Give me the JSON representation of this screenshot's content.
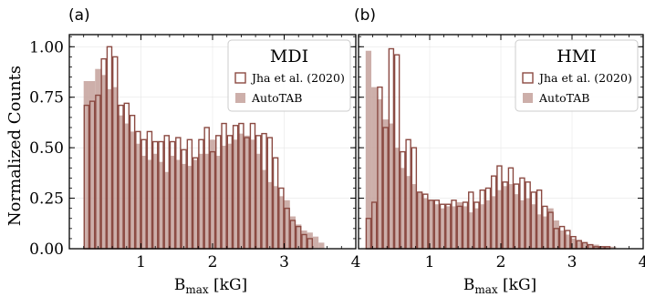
{
  "figure": {
    "ylabel": "Normalized Counts",
    "xlabel_main": "B",
    "xlabel_sub": "max",
    "xlabel_unit": "[kG]"
  },
  "chart_data": [
    {
      "type": "bar",
      "panel_label": "(a)",
      "title": "MDI",
      "xlabel": "B_max [kG]",
      "ylabel": "Normalized Counts",
      "xlim": [
        0,
        4
      ],
      "ylim": [
        0,
        1.06
      ],
      "xticks": [
        1,
        2,
        3,
        4
      ],
      "yticks": [
        0.0,
        0.25,
        0.5,
        0.75,
        1.0
      ],
      "ytick_labels": [
        "0.00",
        "0.25",
        "0.50",
        "0.75",
        "1.00"
      ],
      "legend_position": "top-right",
      "bin_start": 0.2,
      "bin_width": 0.08,
      "series": [
        {
          "name": "Jha et al. (2020)",
          "style": "outline",
          "color": "#8b4a42",
          "values": [
            0.71,
            0.73,
            0.76,
            0.94,
            1.0,
            0.95,
            0.71,
            0.72,
            0.66,
            0.58,
            0.54,
            0.58,
            0.53,
            0.53,
            0.56,
            0.53,
            0.55,
            0.49,
            0.54,
            0.45,
            0.54,
            0.6,
            0.48,
            0.56,
            0.62,
            0.56,
            0.61,
            0.62,
            0.55,
            0.62,
            0.56,
            0.57,
            0.55,
            0.45,
            0.3,
            0.2,
            0.14,
            0.11,
            0.07,
            0.05,
            0.0,
            0.0,
            0.0
          ]
        },
        {
          "name": "AutoTAB",
          "style": "filled",
          "color": "#c4a19b",
          "values": [
            0.83,
            0.83,
            0.89,
            0.86,
            0.79,
            0.8,
            0.66,
            0.62,
            0.58,
            0.52,
            0.46,
            0.44,
            0.47,
            0.43,
            0.38,
            0.46,
            0.44,
            0.42,
            0.41,
            0.44,
            0.47,
            0.47,
            0.54,
            0.46,
            0.51,
            0.52,
            0.54,
            0.57,
            0.56,
            0.54,
            0.47,
            0.39,
            0.33,
            0.31,
            0.26,
            0.24,
            0.16,
            0.12,
            0.09,
            0.08,
            0.06,
            0.03,
            0.0
          ]
        }
      ]
    },
    {
      "type": "bar",
      "panel_label": "(b)",
      "title": "HMI",
      "xlabel": "B_max [kG]",
      "ylabel": "",
      "xlim": [
        0,
        4
      ],
      "ylim": [
        0,
        1.06
      ],
      "xticks": [
        1,
        2,
        3,
        4
      ],
      "yticks": [
        0.0,
        0.25,
        0.5,
        0.75,
        1.0
      ],
      "legend_position": "top-right",
      "bin_start": 0.1,
      "bin_width": 0.08,
      "series": [
        {
          "name": "Jha et al. (2020)",
          "style": "outline",
          "color": "#8b4a42",
          "values": [
            0.15,
            0.23,
            0.8,
            0.6,
            0.99,
            0.96,
            0.48,
            0.54,
            0.5,
            0.28,
            0.27,
            0.24,
            0.24,
            0.22,
            0.22,
            0.24,
            0.21,
            0.23,
            0.28,
            0.23,
            0.29,
            0.3,
            0.36,
            0.41,
            0.33,
            0.4,
            0.32,
            0.35,
            0.33,
            0.28,
            0.29,
            0.21,
            0.18,
            0.1,
            0.11,
            0.09,
            0.06,
            0.04,
            0.03,
            0.02,
            0.01,
            0.01,
            0.01,
            0.0,
            0.0,
            0.0,
            0.0,
            0.0,
            0.0
          ]
        },
        {
          "name": "AutoTAB",
          "style": "filled",
          "color": "#c4a19b",
          "values": [
            0.98,
            0.8,
            0.74,
            0.64,
            0.62,
            0.5,
            0.4,
            0.36,
            0.32,
            0.28,
            0.25,
            0.24,
            0.22,
            0.2,
            0.21,
            0.21,
            0.23,
            0.21,
            0.18,
            0.2,
            0.22,
            0.24,
            0.26,
            0.29,
            0.31,
            0.32,
            0.27,
            0.24,
            0.25,
            0.22,
            0.17,
            0.16,
            0.2,
            0.14,
            0.09,
            0.07,
            0.05,
            0.04,
            0.03,
            0.02,
            0.02,
            0.01,
            0.01,
            0.01,
            0.0,
            0.0,
            0.0,
            0.0,
            0.0
          ]
        }
      ]
    }
  ]
}
